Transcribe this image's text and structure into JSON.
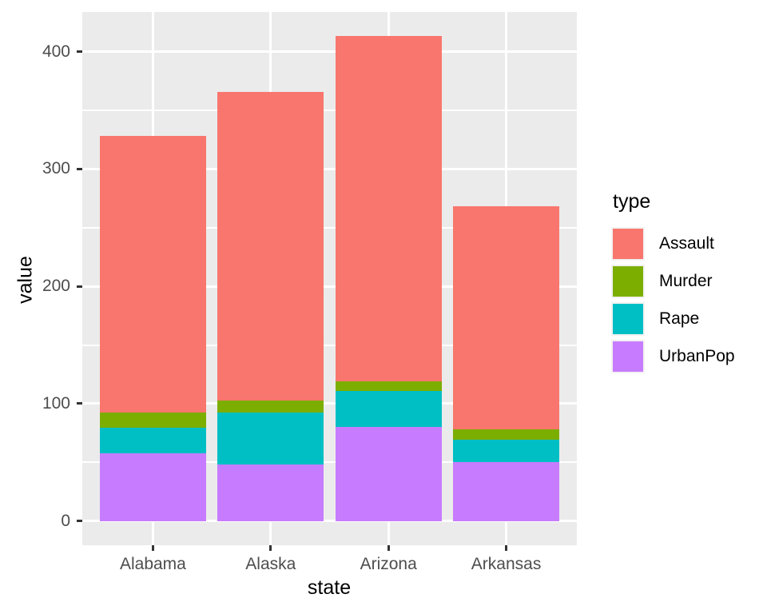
{
  "colors": {
    "panel_background": "#EBEBEB",
    "gridline": "#FFFFFF",
    "tick_mark": "#333333",
    "axis_text": "#4D4D4D",
    "title_text": "#000000",
    "assault": "#F8766D",
    "murder": "#7CAE00",
    "rape": "#00BFC4",
    "urbanpop": "#C77CFF"
  },
  "legend": {
    "title": "type",
    "items": [
      {
        "label": "Assault",
        "color": "#F8766D"
      },
      {
        "label": "Murder",
        "color": "#7CAE00"
      },
      {
        "label": "Rape",
        "color": "#00BFC4"
      },
      {
        "label": "UrbanPop",
        "color": "#C77CFF"
      }
    ]
  },
  "chart_data": {
    "type": "bar",
    "stacked": true,
    "title": "",
    "xlabel": "state",
    "ylabel": "value",
    "categories": [
      "Alabama",
      "Alaska",
      "Arizona",
      "Arkansas"
    ],
    "series": [
      {
        "name": "Assault",
        "color": "#F8766D",
        "values": [
          236,
          263,
          294,
          190
        ]
      },
      {
        "name": "Murder",
        "color": "#7CAE00",
        "values": [
          13.2,
          10,
          8.1,
          8.8
        ]
      },
      {
        "name": "Rape",
        "color": "#00BFC4",
        "values": [
          21.2,
          44.5,
          31,
          19.5
        ]
      },
      {
        "name": "UrbanPop",
        "color": "#C77CFF",
        "values": [
          58,
          48,
          80,
          50
        ]
      }
    ],
    "stack_order_bottom_to_top": [
      "UrbanPop",
      "Rape",
      "Murder",
      "Assault"
    ],
    "stack_totals": [
      328.4,
      365.5,
      413.1,
      268.3
    ],
    "y_major_ticks": [
      0,
      100,
      200,
      300,
      400
    ],
    "y_minor_ticks": [
      50,
      150,
      250,
      350
    ],
    "ylim": [
      -20.7,
      433.8
    ],
    "bar_relative_width": 0.9,
    "grid": "white major+minor horizontal, white major vertical, on gray panel",
    "legend_position": "right"
  }
}
